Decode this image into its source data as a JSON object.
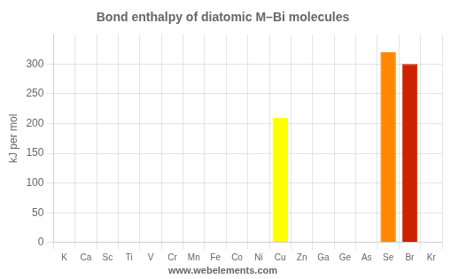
{
  "chart_data": {
    "type": "bar",
    "title": "Bond enthalpy of diatomic M–Bi molecules",
    "ylabel": "kJ per mol",
    "annotation": "www.webelements.com",
    "categories": [
      "K",
      "Ca",
      "Sc",
      "Ti",
      "V",
      "Cr",
      "Mn",
      "Fe",
      "Co",
      "Ni",
      "Cu",
      "Zn",
      "Ga",
      "Ge",
      "As",
      "Se",
      "Br",
      "Kr"
    ],
    "values": [
      0,
      0,
      0,
      0,
      0,
      0,
      0,
      0,
      0,
      0,
      210,
      0,
      0,
      0,
      0,
      320,
      300,
      0
    ],
    "colors": [
      "blue",
      "blue",
      "blue",
      "blue",
      "blue",
      "blue",
      "blue",
      "blue",
      "blue",
      "blue",
      "#ffff00",
      "blue",
      "blue",
      "blue",
      "blue",
      "#ff8800",
      "#cc2200",
      "blue"
    ],
    "ylim": [
      0,
      350
    ],
    "yticks": [
      0,
      50,
      100,
      150,
      200,
      250,
      300
    ],
    "grid": true
  }
}
